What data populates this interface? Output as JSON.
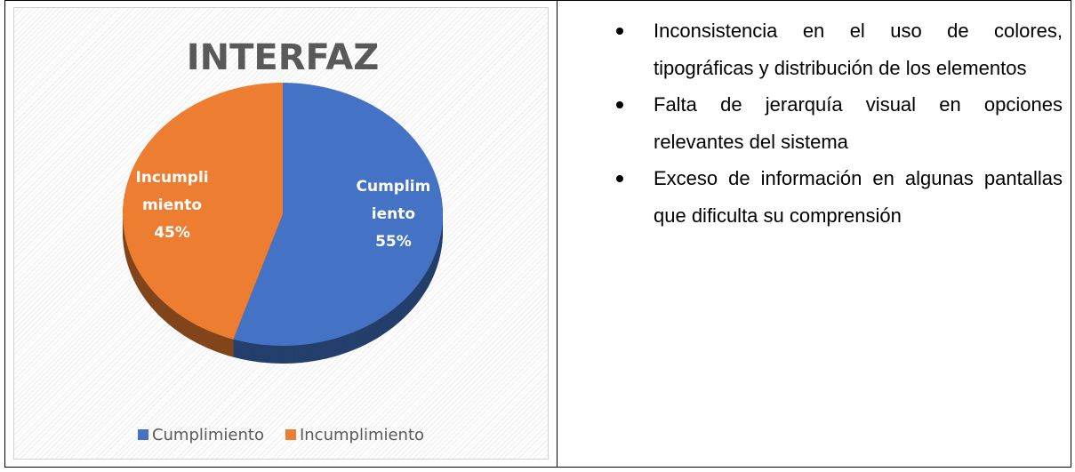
{
  "chart_data": {
    "type": "pie",
    "title": "INTERFAZ",
    "categories": [
      "Cumplimiento",
      "Incumplimiento"
    ],
    "values": [
      55,
      45
    ],
    "value_labels": [
      "55%",
      "45%"
    ],
    "colors": [
      "#4472c4",
      "#ed7d31"
    ]
  },
  "bullets": [
    "Inconsistencia en el uso de colores, tipográficas y distribución de los elementos",
    "Falta de jerarquía visual en opciones relevantes del sistema",
    "Exceso de información en algunas pantallas que dificulta su comprensión"
  ]
}
